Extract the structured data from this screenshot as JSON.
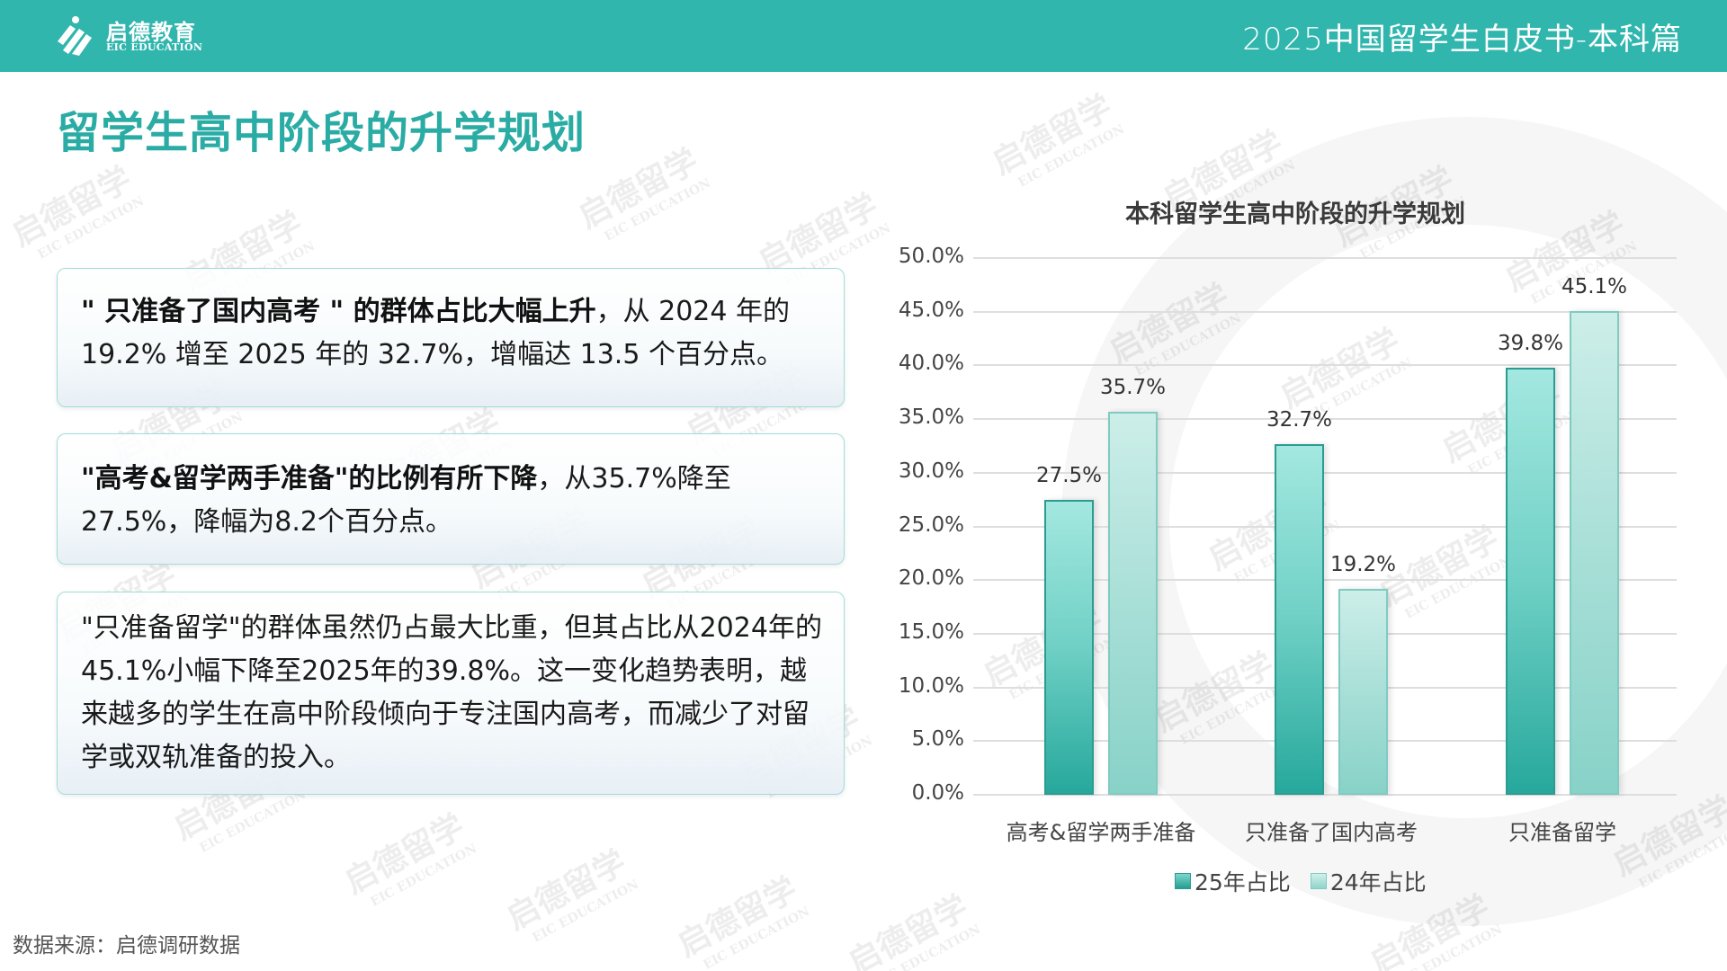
{
  "header": {
    "logo_cn": "启德教育",
    "logo_en": "EIC EDUCATION",
    "title": "2025中国留学生白皮书-本科篇",
    "bg_color": "#31b6ae"
  },
  "page": {
    "title": "留学生高中阶段的升学规划",
    "title_color": "#2aaca5"
  },
  "boxes": [
    {
      "bold": "\" 只准备了国内高考 \" 的群体占比大幅上升",
      "rest": "，从 2024 年的 19.2% 增至 2025 年的 32.7%，增幅达 13.5 个百分点。"
    },
    {
      "bold": "\"高考&留学两手准备\"的比例有所下降",
      "rest": "，从35.7%降至27.5%，降幅为8.2个百分点。"
    },
    {
      "bold": "",
      "rest": "\"只准备留学\"的群体虽然仍占最大比重，但其占比从2024年的45.1%小幅下降至2025年的39.8%。这一变化趋势表明，越来越多的学生在高中阶段倾向于专注国内高考，而减少了对留学或双轨准备的投入。"
    }
  ],
  "source": "数据来源：启德调研数据",
  "watermark": {
    "cn": "启德留学",
    "en": "EIC EDUCATION"
  },
  "chart_data": {
    "type": "bar",
    "title": "本科留学生高中阶段的升学规划",
    "categories": [
      "高考&留学两手准备",
      "只准备了国内高考",
      "只准备留学"
    ],
    "series": [
      {
        "name": "25年占比",
        "values": [
          27.5,
          32.7,
          39.8
        ],
        "labels": [
          "27.5%",
          "32.7%",
          "39.8%"
        ],
        "color": "#2aa99d"
      },
      {
        "name": "24年占比",
        "values": [
          35.7,
          19.2,
          45.1
        ],
        "labels": [
          "35.7%",
          "19.2%",
          "45.1%"
        ],
        "color": "#9fdcd3"
      }
    ],
    "yticks": [
      "0.0%",
      "5.0%",
      "10.0%",
      "15.0%",
      "20.0%",
      "25.0%",
      "30.0%",
      "35.0%",
      "40.0%",
      "45.0%",
      "50.0%"
    ],
    "xlabel": "",
    "ylabel": "",
    "ylim": [
      0,
      50
    ],
    "grid": true,
    "legend_position": "bottom"
  }
}
